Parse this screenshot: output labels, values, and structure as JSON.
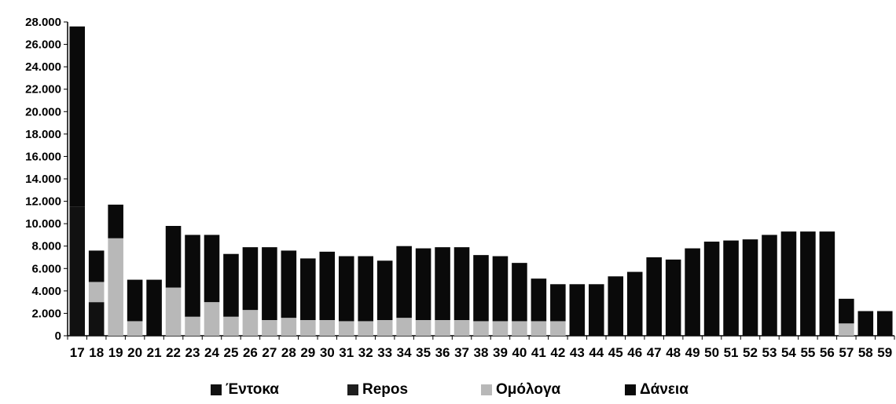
{
  "colors": {
    "entoka": "#111111",
    "repos": "#1e1e1e",
    "omologa": "#b8b8b8",
    "daneia": "#0a0a0a"
  },
  "legend": {
    "items": [
      {
        "key": "entoka",
        "label": "Έντοκα"
      },
      {
        "key": "repos",
        "label": "Repos"
      },
      {
        "key": "omologa",
        "label": "Ομόλογα"
      },
      {
        "key": "daneia",
        "label": "Δάνεια"
      }
    ]
  },
  "chart_data": {
    "type": "bar",
    "stacked": true,
    "title": "",
    "xlabel": "",
    "ylabel": "",
    "ylim": [
      0,
      28000
    ],
    "yticks": [
      0,
      2000,
      4000,
      6000,
      8000,
      10000,
      12000,
      14000,
      16000,
      18000,
      20000,
      22000,
      24000,
      26000,
      28000
    ],
    "ytick_labels": [
      "0",
      "2.000",
      "4.000",
      "6.000",
      "8.000",
      "10.000",
      "12.000",
      "14.000",
      "16.000",
      "18.000",
      "20.000",
      "22.000",
      "24.000",
      "26.000",
      "28.000"
    ],
    "grid": false,
    "legend_position": "bottom",
    "categories": [
      "17",
      "18",
      "19",
      "20",
      "21",
      "22",
      "23",
      "24",
      "25",
      "26",
      "27",
      "28",
      "29",
      "30",
      "31",
      "32",
      "33",
      "34",
      "35",
      "36",
      "37",
      "38",
      "39",
      "40",
      "41",
      "42",
      "43",
      "44",
      "45",
      "46",
      "47",
      "48",
      "49",
      "50",
      "51",
      "52",
      "53",
      "54",
      "55",
      "56",
      "57",
      "58",
      "59"
    ],
    "series": [
      {
        "key": "entoka",
        "name": "Έντοκα",
        "values": [
          11500,
          3000,
          0,
          0,
          0,
          0,
          0,
          0,
          0,
          0,
          0,
          0,
          0,
          0,
          0,
          0,
          0,
          0,
          0,
          0,
          0,
          0,
          0,
          0,
          0,
          0,
          0,
          0,
          0,
          0,
          0,
          0,
          0,
          0,
          0,
          0,
          0,
          0,
          0,
          0,
          0,
          0,
          0
        ]
      },
      {
        "key": "repos",
        "name": "Repos",
        "values": [
          0,
          0,
          0,
          0,
          0,
          0,
          0,
          0,
          0,
          0,
          0,
          0,
          0,
          0,
          0,
          0,
          0,
          0,
          0,
          0,
          0,
          0,
          0,
          0,
          0,
          0,
          0,
          0,
          0,
          0,
          0,
          0,
          0,
          0,
          0,
          0,
          0,
          0,
          0,
          0,
          0,
          0,
          0
        ]
      },
      {
        "key": "omologa",
        "name": "Ομόλογα",
        "values": [
          0,
          1800,
          8700,
          1300,
          0,
          4300,
          1700,
          3000,
          1700,
          2300,
          1400,
          1600,
          1400,
          1400,
          1300,
          1300,
          1400,
          1600,
          1400,
          1400,
          1400,
          1300,
          1300,
          1300,
          1300,
          1300,
          0,
          0,
          0,
          0,
          0,
          0,
          0,
          0,
          0,
          0,
          0,
          0,
          0,
          0,
          1100,
          0,
          0
        ]
      },
      {
        "key": "daneia",
        "name": "Δάνεια",
        "values": [
          16100,
          2800,
          3000,
          3700,
          5000,
          5500,
          7300,
          6000,
          5600,
          5600,
          6500,
          6000,
          5500,
          6100,
          5800,
          5800,
          5300,
          6400,
          6400,
          6500,
          6500,
          5900,
          5800,
          5200,
          3800,
          3300,
          4600,
          4600,
          5300,
          5700,
          7000,
          6800,
          7800,
          8400,
          8500,
          8600,
          9000,
          9300,
          9300,
          9300,
          2200,
          2200,
          2200
        ]
      }
    ]
  }
}
